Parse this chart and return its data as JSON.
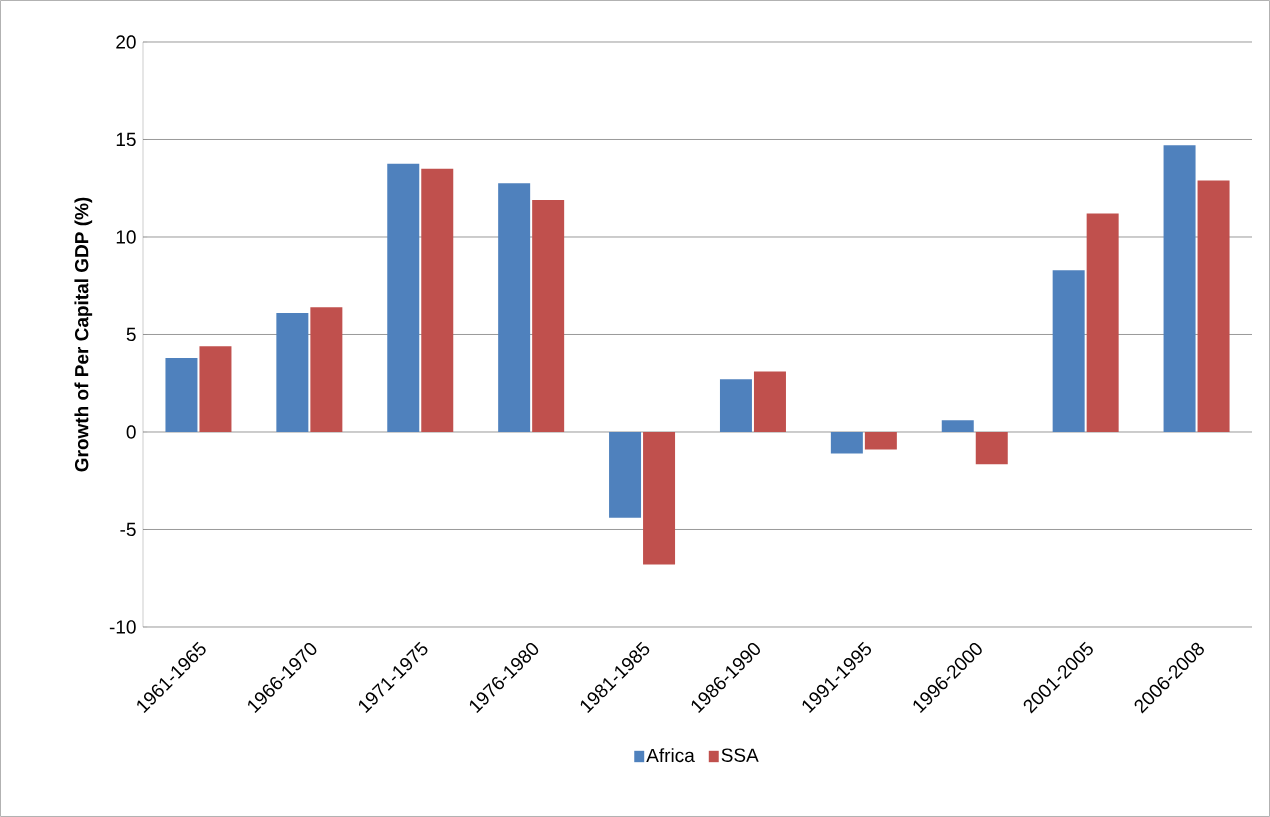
{
  "chart_data": {
    "type": "bar",
    "ylabel": "Growth of Per Capital GDP (%)",
    "categories": [
      "1961-1965",
      "1966-1970",
      "1971-1975",
      "1976-1980",
      "1981-1985",
      "1986-1990",
      "1991-1995",
      "1996-2000",
      "2001-2005",
      "2006-2008"
    ],
    "series": [
      {
        "name": "Africa",
        "color": "#4f81bd",
        "values": [
          3.8,
          6.1,
          13.75,
          12.75,
          -4.4,
          2.7,
          -1.1,
          0.6,
          8.3,
          14.7
        ]
      },
      {
        "name": "SSA",
        "color": "#c0504d",
        "values": [
          4.4,
          6.4,
          13.5,
          11.9,
          -6.8,
          3.1,
          -0.9,
          -1.65,
          11.2,
          12.9
        ]
      }
    ],
    "ylim": [
      -10,
      20
    ],
    "yticks": [
      -10,
      -5,
      0,
      5,
      10,
      15,
      20
    ],
    "grid": "y",
    "legend": "bottom"
  }
}
